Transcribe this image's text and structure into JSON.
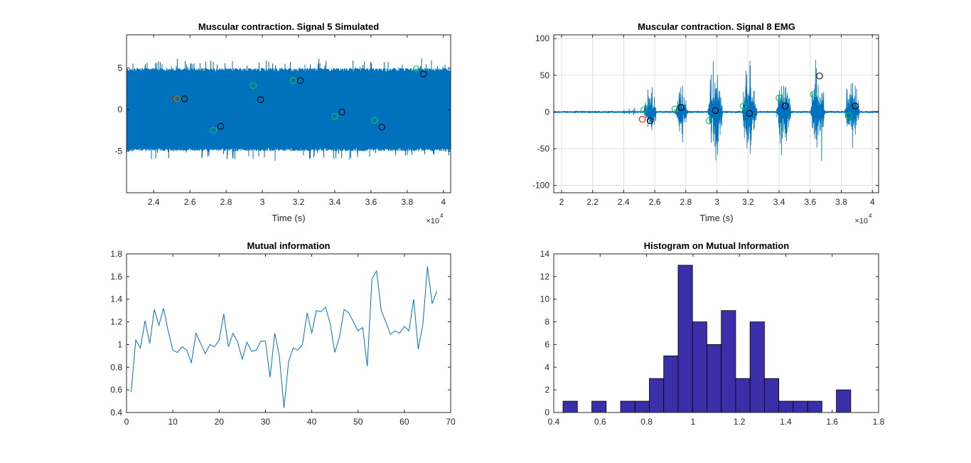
{
  "colors": {
    "signal": "#0072BD",
    "hist_face": "#3A2FA8",
    "hist_edge": "#000000",
    "marker_red": "#FF0000",
    "marker_green": "#00CC44",
    "marker_black": "#000000",
    "axis": "#262626",
    "grid": "#DFDFDF"
  },
  "chart_data": [
    {
      "type": "line",
      "title": "Muscular contraction. Signal 5 Simulated",
      "xlabel": "Time (s)",
      "ylabel": "",
      "x_exponent_label": "×10",
      "x_exponent": "4",
      "xlim": [
        2.25,
        4.04
      ],
      "ylim": [
        -10,
        9
      ],
      "xticks": [
        2.4,
        2.6,
        2.8,
        3.0,
        3.2,
        3.4,
        3.6,
        3.8,
        4.0
      ],
      "xtick_labels": [
        "2.4",
        "2.6",
        "2.8",
        "3",
        "3.2",
        "3.4",
        "3.6",
        "3.8",
        "4"
      ],
      "yticks": [
        -5,
        0,
        5
      ],
      "ytick_labels": [
        "-5",
        "0",
        "5"
      ],
      "grid": false,
      "signal": {
        "x_range": [
          2.25,
          4.04
        ],
        "band_amplitude": 5.0,
        "peak_amplitude": 6.2
      },
      "markers": {
        "red": [
          [
            2.52,
            1.3
          ]
        ],
        "green": [
          [
            2.53,
            1.3
          ],
          [
            2.73,
            -2.5
          ],
          [
            2.95,
            2.9
          ],
          [
            3.17,
            3.5
          ],
          [
            3.4,
            -0.8
          ],
          [
            3.62,
            -1.3
          ],
          [
            3.85,
            4.9
          ]
        ],
        "black": [
          [
            2.57,
            1.3
          ],
          [
            2.77,
            -2.0
          ],
          [
            2.99,
            1.2
          ],
          [
            3.21,
            3.5
          ],
          [
            3.44,
            -0.3
          ],
          [
            3.66,
            -2.1
          ],
          [
            3.89,
            4.3
          ]
        ]
      }
    },
    {
      "type": "line",
      "title": "Muscular contraction. Signal 8 EMG",
      "xlabel": "Time (s)",
      "ylabel": "",
      "x_exponent_label": "×10",
      "x_exponent": "4",
      "xlim": [
        1.95,
        4.04
      ],
      "ylim": [
        -110,
        105
      ],
      "xticks": [
        2.0,
        2.2,
        2.4,
        2.6,
        2.8,
        3.0,
        3.2,
        3.4,
        3.6,
        3.8,
        4.0
      ],
      "xtick_labels": [
        "2",
        "2.2",
        "2.4",
        "2.6",
        "2.8",
        "3",
        "3.2",
        "3.4",
        "3.6",
        "3.8",
        "4"
      ],
      "yticks": [
        -100,
        -50,
        0,
        50,
        100
      ],
      "ytick_labels": [
        "-100",
        "-50",
        "0",
        "50",
        "100"
      ],
      "grid": true,
      "bursts": [
        {
          "center": 2.57,
          "width": 0.09,
          "amplitude": 55
        },
        {
          "center": 2.77,
          "width": 0.09,
          "amplitude": 50
        },
        {
          "center": 2.99,
          "width": 0.1,
          "amplitude": 100
        },
        {
          "center": 3.21,
          "width": 0.1,
          "amplitude": 95
        },
        {
          "center": 3.43,
          "width": 0.1,
          "amplitude": 90
        },
        {
          "center": 3.65,
          "width": 0.1,
          "amplitude": 95
        },
        {
          "center": 3.87,
          "width": 0.1,
          "amplitude": 80
        }
      ],
      "markers": {
        "red": [
          [
            2.52,
            -10
          ]
        ],
        "green": [
          [
            2.53,
            3
          ],
          [
            2.73,
            4
          ],
          [
            2.95,
            -12
          ],
          [
            3.17,
            8
          ],
          [
            3.4,
            19
          ],
          [
            3.62,
            24
          ],
          [
            3.85,
            -5
          ]
        ],
        "black": [
          [
            2.57,
            -12
          ],
          [
            2.77,
            6
          ],
          [
            2.99,
            2
          ],
          [
            3.21,
            -2
          ],
          [
            3.44,
            8
          ],
          [
            3.66,
            49
          ],
          [
            3.89,
            8
          ]
        ]
      }
    },
    {
      "type": "line",
      "title": "Mutual information",
      "xlabel": "",
      "ylabel": "",
      "xlim": [
        0,
        70
      ],
      "ylim": [
        0.4,
        1.8
      ],
      "xticks": [
        0,
        10,
        20,
        30,
        40,
        50,
        60,
        70
      ],
      "xtick_labels": [
        "0",
        "10",
        "20",
        "30",
        "40",
        "50",
        "60",
        "70"
      ],
      "yticks": [
        0.4,
        0.6,
        0.8,
        1.0,
        1.2,
        1.4,
        1.6,
        1.8
      ],
      "ytick_labels": [
        "0.4",
        "0.6",
        "0.8",
        "1",
        "1.2",
        "1.4",
        "1.6",
        "1.8"
      ],
      "grid": false,
      "x": [
        1,
        2,
        3,
        4,
        5,
        6,
        7,
        8,
        9,
        10,
        11,
        12,
        13,
        14,
        15,
        16,
        17,
        18,
        19,
        20,
        21,
        22,
        23,
        24,
        25,
        26,
        27,
        28,
        29,
        30,
        31,
        32,
        33,
        34,
        35,
        36,
        37,
        38,
        39,
        40,
        41,
        42,
        43,
        44,
        45,
        46,
        47,
        48,
        49,
        50,
        51,
        52,
        53,
        54,
        55,
        56,
        57,
        58,
        59,
        60,
        61,
        62,
        63,
        64,
        65,
        66,
        67
      ],
      "y": [
        0.58,
        1.04,
        0.97,
        1.21,
        1.01,
        1.31,
        1.17,
        1.32,
        1.12,
        0.95,
        0.93,
        0.98,
        0.95,
        0.84,
        1.1,
        1.01,
        0.92,
        1.0,
        0.98,
        1.04,
        1.27,
        0.98,
        1.1,
        1.02,
        0.87,
        1.02,
        0.94,
        0.95,
        1.03,
        1.03,
        0.71,
        1.1,
        0.9,
        0.44,
        0.85,
        0.97,
        0.95,
        1.0,
        1.28,
        1.1,
        1.3,
        1.29,
        1.33,
        1.18,
        0.93,
        1.07,
        1.31,
        1.28,
        1.2,
        1.12,
        1.15,
        0.81,
        1.58,
        1.65,
        1.3,
        1.2,
        1.09,
        1.12,
        1.1,
        1.16,
        1.12,
        1.4,
        0.96,
        1.18,
        1.69,
        1.36,
        1.47
      ]
    },
    {
      "type": "bar",
      "title": "Histogram on Mutual Information",
      "xlabel": "",
      "ylabel": "",
      "xlim": [
        0.4,
        1.8
      ],
      "ylim": [
        0,
        14
      ],
      "xticks": [
        0.4,
        0.6,
        0.8,
        1.0,
        1.2,
        1.4,
        1.6,
        1.8
      ],
      "xtick_labels": [
        "0.4",
        "0.6",
        "0.8",
        "1",
        "1.2",
        "1.4",
        "1.6",
        "1.8"
      ],
      "yticks": [
        0,
        2,
        4,
        6,
        8,
        10,
        12,
        14
      ],
      "ytick_labels": [
        "0",
        "2",
        "4",
        "6",
        "8",
        "10",
        "12",
        "14"
      ],
      "grid": false,
      "bin_edges": [
        0.44,
        0.502,
        0.564,
        0.626,
        0.688,
        0.75,
        0.812,
        0.874,
        0.936,
        0.998,
        1.06,
        1.122,
        1.184,
        1.246,
        1.308,
        1.37,
        1.432,
        1.494,
        1.556,
        1.618,
        1.68
      ],
      "values": [
        1,
        0,
        1,
        0,
        1,
        1,
        3,
        5,
        13,
        8,
        6,
        9,
        3,
        8,
        3,
        1,
        1,
        1,
        0,
        2
      ]
    }
  ]
}
